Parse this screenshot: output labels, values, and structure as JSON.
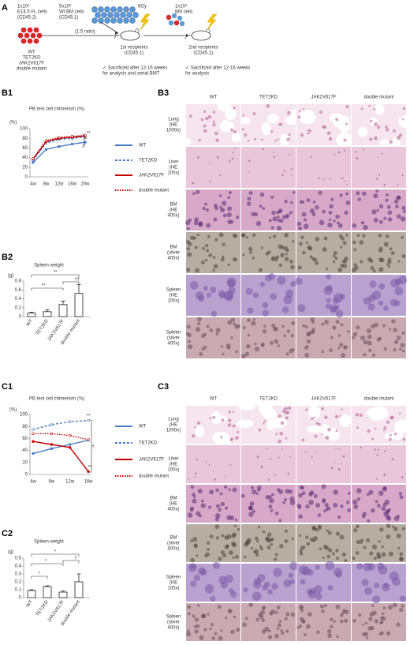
{
  "schema": {
    "panel": "A",
    "donor_label": [
      "1x10⁶",
      "E14.5 FL cells",
      "(CD45.2)"
    ],
    "competitor_label": [
      "5x10⁶",
      "Wt BM cells",
      "(CD45.1)"
    ],
    "ratio": "(1:5 ratio)",
    "irradiation": "9Gy",
    "genotypes": [
      "WT",
      "TET2KD",
      "JAK2V617F",
      "double mutant"
    ],
    "first_recipients": [
      "1st recipients",
      "(CD45.1)"
    ],
    "transfer_label": [
      "1x10⁶",
      "BM cells"
    ],
    "second_recipients": [
      "2nd recipients",
      "(CD45.1)"
    ],
    "note_first": [
      "✓  Sacrificed after 12-16 weeks",
      "for analysis and serial BMT"
    ],
    "note_second": [
      "✓  Sacrificed after 12-16 weeks",
      "for analysis"
    ]
  },
  "chart_data": [
    {
      "type": "line",
      "panel": "B1",
      "title": "PB test cell chimerism (%)",
      "y_label": "(%)",
      "categories": [
        "4w",
        "8w",
        "12w",
        "16w",
        "20w"
      ],
      "ylim": [
        0,
        100
      ],
      "yticks": [
        0,
        20,
        40,
        60,
        80,
        100
      ],
      "series": [
        {
          "name": "WT",
          "color": "#4a7cc4",
          "dash": "solid",
          "values": [
            30,
            57,
            63,
            68,
            72
          ]
        },
        {
          "name": "TET2KD",
          "color": "#4a7cc4",
          "dash": "dashed",
          "values": [
            35,
            70,
            78,
            80,
            83
          ]
        },
        {
          "name": "JAK2V617F",
          "color": "#c00000",
          "dash": "solid",
          "values": [
            37,
            73,
            80,
            82,
            85
          ]
        },
        {
          "name": "double mutant",
          "color": "#c00000",
          "dash": "dotted",
          "values": [
            38,
            75,
            82,
            84,
            86
          ]
        }
      ],
      "annotations": [
        "**",
        "**",
        "*"
      ]
    },
    {
      "type": "bar",
      "panel": "B2",
      "title": "Spleen weight",
      "y_label": "(g)",
      "categories": [
        "WT",
        "TET2KD",
        "JAK2V617F",
        "double mutant"
      ],
      "values": [
        0.08,
        0.11,
        0.27,
        0.52
      ],
      "errors": [
        0.02,
        0.04,
        0.08,
        0.2
      ],
      "color": "#ffffff",
      "ylim": [
        0,
        0.8
      ],
      "yticks": [
        0,
        0.2,
        0.4,
        0.6,
        0.8
      ],
      "annotations": [
        "**",
        "**",
        "††"
      ]
    },
    {
      "type": "line",
      "panel": "C1",
      "title": "PB test cell chimerism (%)",
      "y_label": "(%)",
      "categories": [
        "4w",
        "8w",
        "12w",
        "16w"
      ],
      "ylim": [
        0,
        100
      ],
      "yticks": [
        0,
        20,
        40,
        60,
        80,
        100
      ],
      "series": [
        {
          "name": "WT",
          "color": "#4a7cc4",
          "dash": "solid",
          "values": [
            35,
            43,
            50,
            57
          ]
        },
        {
          "name": "TET2KD",
          "color": "#4a7cc4",
          "dash": "dashed",
          "values": [
            75,
            83,
            88,
            90
          ]
        },
        {
          "name": "JAK2V617F",
          "color": "#c00000",
          "dash": "solid",
          "values": [
            55,
            50,
            45,
            5
          ]
        },
        {
          "name": "double mutant",
          "color": "#c00000",
          "dash": "dotted",
          "values": [
            68,
            68,
            65,
            58
          ]
        }
      ],
      "annotations": [
        "**",
        "†",
        "**"
      ]
    },
    {
      "type": "bar",
      "panel": "C2",
      "title": "Spleen weight",
      "y_label": "(g)",
      "categories": [
        "WT",
        "TET2KD",
        "JAK2V617F",
        "double mutant"
      ],
      "values": [
        0.09,
        0.14,
        0.07,
        0.2
      ],
      "errors": [
        0.01,
        0.01,
        0.015,
        0.1
      ],
      "color": "#ffffff",
      "ylim": [
        0,
        0.5
      ],
      "yticks": [
        0,
        0.1,
        0.2,
        0.3,
        0.4,
        0.5
      ],
      "annotations": [
        "*",
        "†",
        "*",
        "*"
      ]
    }
  ],
  "histology": [
    {
      "panel": "B3",
      "columns": [
        "WT",
        "TET2KD",
        "JAK2V617F",
        "double mutant"
      ],
      "rows": [
        [
          "Lung",
          "(HE",
          "1000x)"
        ],
        [
          "Liver",
          "(HE",
          "100x)"
        ],
        [
          "BM",
          "(HE",
          "400x)"
        ],
        [
          "BM",
          "(silver",
          "400x)"
        ],
        [
          "Spleen",
          "(HE",
          "100x)"
        ],
        [
          "Spleen",
          "(silver",
          "400x)"
        ]
      ]
    },
    {
      "panel": "C3",
      "columns": [
        "WT",
        "TET2KD",
        "JAK2V617F",
        "double mutant"
      ],
      "rows": [
        [
          "Lung",
          "(HE",
          "1000x)"
        ],
        [
          "Liver",
          "(HE",
          "100x)"
        ],
        [
          "BM",
          "(HE",
          "400x)"
        ],
        [
          "BM",
          "(silver",
          "400x)"
        ],
        [
          "Spleen",
          "(HE",
          "100x)"
        ],
        [
          "Spleen",
          "(silver",
          "400x)"
        ]
      ]
    }
  ]
}
